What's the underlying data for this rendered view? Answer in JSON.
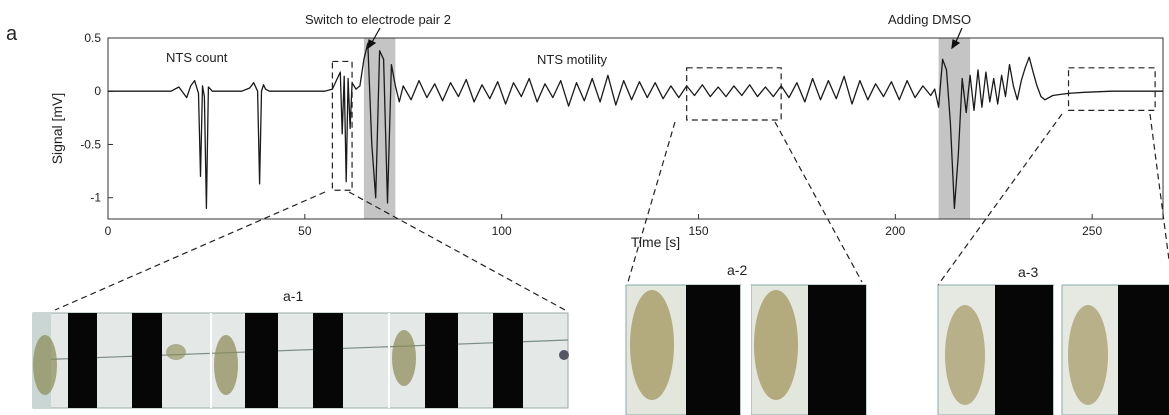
{
  "panel_label": "a",
  "annotations": {
    "switch": "Switch to electrode pair 2",
    "dmso": "Adding DMSO",
    "count": "NTS count",
    "motility": "NTS motility"
  },
  "insets": [
    {
      "label": "a-1"
    },
    {
      "label": "a-2"
    },
    {
      "label": "a-3"
    }
  ],
  "chart_data": {
    "type": "line",
    "title": "",
    "xlabel": "Time [s]",
    "ylabel": "Signal [mV]",
    "xlim": [
      0,
      268
    ],
    "ylim": [
      -1.2,
      0.5
    ],
    "xticks": [
      0,
      50,
      100,
      150,
      200,
      250
    ],
    "yticks": [
      0.5,
      0,
      -0.5,
      -1
    ],
    "ytick_labels": [
      "0.5",
      "0",
      "-0.5",
      "-1"
    ],
    "grid": false,
    "shaded_intervals": [
      [
        65,
        73
      ],
      [
        211,
        219
      ]
    ],
    "zoom_boxes": [
      {
        "x": [
          57,
          62
        ],
        "y": [
          -0.93,
          0.28
        ]
      },
      {
        "x": [
          147,
          171
        ],
        "y": [
          -0.27,
          0.22
        ]
      },
      {
        "x": [
          244,
          266
        ],
        "y": [
          -0.18,
          0.22
        ]
      }
    ],
    "series": [
      {
        "x": [
          0,
          4,
          16,
          18,
          20,
          21,
          22,
          23,
          23.5,
          24,
          24.5,
          25,
          25.5,
          26,
          26.5,
          27,
          28,
          30,
          34,
          36,
          37,
          38,
          38.5,
          39,
          39.5,
          40,
          41,
          42,
          44,
          55,
          57,
          58,
          59,
          59.5,
          60,
          60.5,
          61,
          61.5,
          62,
          63,
          64,
          65,
          66,
          67,
          68,
          69,
          70,
          71,
          72,
          73,
          74,
          75,
          77,
          79,
          81,
          83,
          85,
          87,
          89,
          91,
          93,
          95,
          97,
          99,
          101,
          103,
          105,
          107,
          109,
          111,
          113,
          115,
          117,
          119,
          121,
          123,
          125,
          127,
          129,
          131,
          133,
          135,
          137,
          139,
          141,
          143,
          145,
          147,
          149,
          151,
          153,
          155,
          157,
          159,
          161,
          163,
          165,
          167,
          169,
          171,
          173,
          175,
          177,
          179,
          181,
          183,
          185,
          187,
          189,
          191,
          193,
          195,
          197,
          199,
          201,
          203,
          205,
          207,
          209,
          210,
          211,
          212,
          213,
          214,
          215,
          216,
          217,
          218,
          219,
          220,
          221,
          222,
          223,
          224,
          225,
          226,
          227,
          228,
          229,
          230,
          231,
          232,
          233,
          234,
          235,
          236,
          237,
          238,
          240,
          242,
          244,
          248,
          255,
          262,
          268
        ],
        "y": [
          0,
          0,
          0,
          0.04,
          -0.06,
          0.05,
          0.1,
          -0.02,
          -0.8,
          0.05,
          -0.05,
          -1.1,
          0.04,
          0.02,
          0,
          0,
          0,
          0,
          0,
          0.03,
          0.08,
          0,
          -0.87,
          0,
          0.06,
          0.02,
          0,
          0,
          0,
          0,
          0.02,
          0.1,
          0.18,
          -0.4,
          0.14,
          -0.85,
          0.12,
          -0.35,
          0.08,
          0.02,
          0.05,
          0.3,
          0.45,
          -0.5,
          -1.0,
          0.38,
          0.3,
          -1.05,
          0.25,
          0.05,
          -0.1,
          0.05,
          -0.08,
          0.1,
          -0.06,
          0.07,
          -0.09,
          0.08,
          -0.05,
          0.11,
          -0.1,
          0.06,
          -0.07,
          0.09,
          -0.12,
          0.08,
          -0.05,
          0.12,
          -0.1,
          0.07,
          -0.06,
          0.1,
          -0.14,
          0.08,
          -0.09,
          0.12,
          -0.1,
          0.15,
          -0.13,
          0.1,
          -0.08,
          0.09,
          -0.06,
          0.08,
          -0.07,
          0.05,
          -0.06,
          0.05,
          -0.04,
          0.06,
          -0.05,
          0.04,
          -0.05,
          0.05,
          -0.04,
          0.06,
          -0.05,
          0.04,
          -0.05,
          0.05,
          -0.06,
          0.08,
          -0.1,
          0.12,
          -0.08,
          0.1,
          -0.07,
          0.14,
          -0.12,
          0.1,
          -0.08,
          0.07,
          -0.05,
          0.09,
          -0.08,
          0.1,
          -0.06,
          0.05,
          -0.04,
          0.02,
          -0.15,
          0.3,
          0.2,
          -0.3,
          -1.1,
          -0.6,
          0.12,
          -0.2,
          0.15,
          -0.18,
          0.2,
          -0.15,
          0.18,
          -0.1,
          0.12,
          -0.12,
          0.15,
          -0.05,
          0.25,
          0.05,
          -0.08,
          0.1,
          0.22,
          0.32,
          0.18,
          0.05,
          -0.05,
          -0.08,
          -0.04,
          -0.03,
          -0.02,
          -0.01,
          0,
          0,
          0
        ]
      }
    ]
  }
}
